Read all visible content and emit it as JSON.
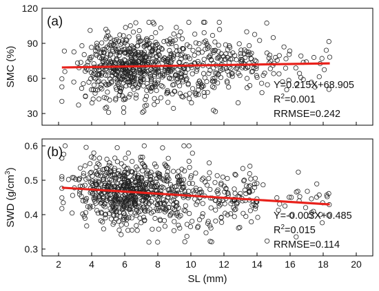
{
  "chart_data": [
    {
      "type": "scatter",
      "panel_label": "(a)",
      "ylabel": "SMC (%)",
      "xlabel": "",
      "xlim": [
        1,
        21
      ],
      "ylim": [
        20,
        120
      ],
      "x_ticks": [
        2,
        4,
        6,
        8,
        10,
        12,
        14,
        16,
        18,
        20
      ],
      "y_ticks": [
        30,
        60,
        90,
        120
      ],
      "x_tick_labels_shown": false,
      "fit": {
        "slope": 0.215,
        "intercept": 68.905,
        "x_range": [
          2.2,
          18.4
        ]
      },
      "stats": {
        "equation": "Y=0.215X+68.905",
        "r2_prefix": "R",
        "r2_sup": "2",
        "r2_value": "=0.001",
        "rrmse": "RRMSE=0.242"
      },
      "scatter_cloud": {
        "n_points": 860,
        "x_mean": 6.3,
        "x_sd": 2.3,
        "x_min": 2.2,
        "x_max": 18.4,
        "y_mean": 70,
        "y_sd": 15,
        "y_min": 31,
        "y_max": 108
      },
      "series_color": "#e8211b",
      "marker": "open-circle"
    },
    {
      "type": "scatter",
      "panel_label": "(b)",
      "ylabel_main": "SWD (g/cm",
      "ylabel_sup": "3",
      "ylabel_end": ")",
      "xlabel": "SL (mm)",
      "xlim": [
        1,
        21
      ],
      "ylim": [
        0.28,
        0.62
      ],
      "x_ticks": [
        2,
        4,
        6,
        8,
        10,
        12,
        14,
        16,
        18,
        20
      ],
      "x_tick_labels": [
        "2",
        "4",
        "6",
        "8",
        "10",
        "12",
        "14",
        "16",
        "18",
        "20"
      ],
      "y_ticks": [
        0.3,
        0.4,
        0.5,
        0.6
      ],
      "y_tick_labels": [
        "0.3",
        "0.4",
        "0.5",
        "0.6"
      ],
      "fit": {
        "slope": -0.003,
        "intercept": 0.485,
        "x_range": [
          2.2,
          18.4
        ]
      },
      "stats": {
        "equation": "Y=-0.003X+0.485",
        "r2_prefix": "R",
        "r2_sup": "2",
        "r2_value": "=0.015",
        "rrmse": "RRMSE=0.114"
      },
      "scatter_cloud": {
        "n_points": 860,
        "x_mean": 6.3,
        "x_sd": 2.3,
        "x_min": 2.2,
        "x_max": 18.4,
        "y_mean": 0.465,
        "y_sd": 0.05,
        "y_min": 0.32,
        "y_max": 0.6
      },
      "series_color": "#e8211b",
      "marker": "open-circle"
    }
  ]
}
